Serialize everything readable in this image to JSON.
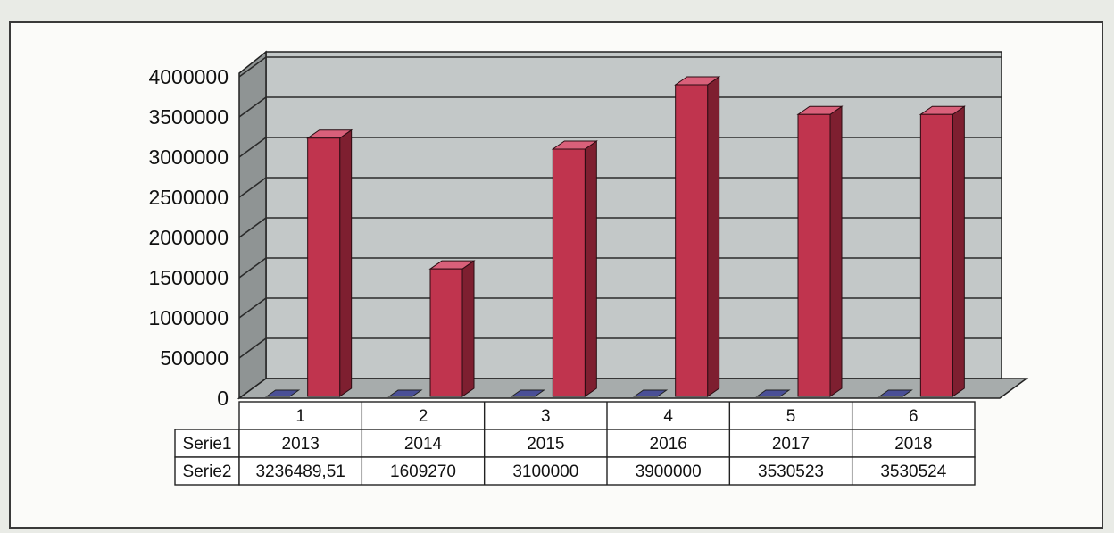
{
  "chart_data": {
    "type": "bar",
    "categories": [
      "1",
      "2",
      "3",
      "4",
      "5",
      "6"
    ],
    "series": [
      {
        "name": "Serie1",
        "values": [
          2013,
          2014,
          2015,
          2016,
          2017,
          2018
        ],
        "labels": [
          "2013",
          "2014",
          "2015",
          "2016",
          "2017",
          "2018"
        ]
      },
      {
        "name": "Serie2",
        "values": [
          3236489.51,
          1609270,
          3100000,
          3900000,
          3530523,
          3530524
        ],
        "labels": [
          "3236489,51",
          "1609270",
          "3100000",
          "3900000",
          "3530523",
          "3530524"
        ]
      }
    ],
    "yticks": [
      "0",
      "500000",
      "1000000",
      "1500000",
      "2000000",
      "2500000",
      "3000000",
      "3500000",
      "4000000"
    ],
    "ylim": [
      0,
      4000000
    ],
    "grid": true,
    "legend": "data-table-below",
    "colors": {
      "bar_front": "#c0344e",
      "bar_side": "#7e1f30",
      "bar_top": "#d9607a",
      "small_bar": "#4a4f96",
      "wall": "#c3c8c8",
      "wall_side": "#8f9494",
      "floor": "#a7acac"
    }
  }
}
